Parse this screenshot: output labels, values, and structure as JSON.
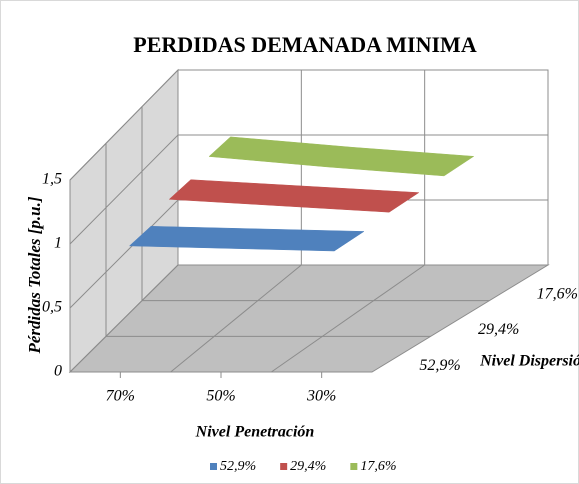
{
  "chart_data": {
    "type": "surface",
    "title": "PERDIDAS DEMANADA MINIMA",
    "y_label": "Pérdidas Totales [p.u.]",
    "x_label": "Nivel Penetración",
    "z_label": "Nivel Dispersión",
    "categories": [
      "70%",
      "50%",
      "30%"
    ],
    "series": [
      {
        "name": "52,9%",
        "color": "#4f81bd",
        "values": [
          0.92,
          0.9,
          0.88
        ]
      },
      {
        "name": "29,4%",
        "color": "#c0504d",
        "values": [
          1.0,
          0.95,
          0.9
        ]
      },
      {
        "name": "17,6%",
        "color": "#9bbb59",
        "values": [
          1.05,
          0.97,
          0.9
        ]
      }
    ],
    "ylim": [
      0,
      1.5
    ],
    "yticks": [
      0,
      {
        "value": 0.5,
        "label": "0,5"
      },
      1,
      {
        "value": 1.5,
        "label": "1,5"
      }
    ],
    "grid": true,
    "legend": "bottom"
  }
}
